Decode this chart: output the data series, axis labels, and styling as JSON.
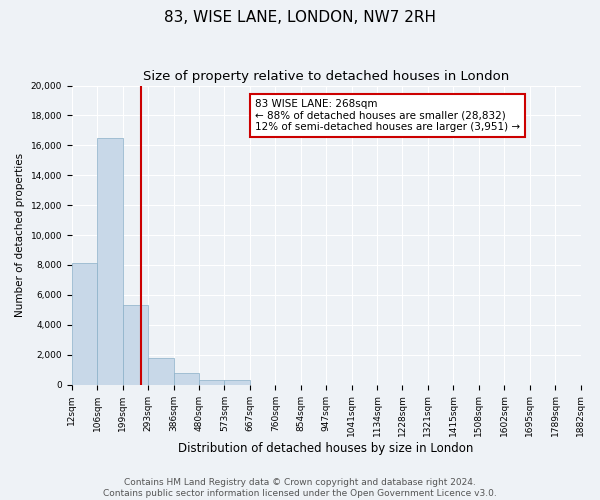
{
  "title": "83, WISE LANE, LONDON, NW7 2RH",
  "subtitle": "Size of property relative to detached houses in London",
  "xlabel": "Distribution of detached houses by size in London",
  "ylabel": "Number of detached properties",
  "bar_values": [
    8100,
    16500,
    5300,
    1750,
    800,
    300,
    300,
    0,
    0,
    0,
    0,
    0,
    0,
    0,
    0,
    0,
    0,
    0,
    0,
    0
  ],
  "bar_labels": [
    "12sqm",
    "106sqm",
    "199sqm",
    "293sqm",
    "386sqm",
    "480sqm",
    "573sqm",
    "667sqm",
    "760sqm",
    "854sqm",
    "947sqm",
    "1041sqm",
    "1134sqm",
    "1228sqm",
    "1321sqm",
    "1415sqm",
    "1508sqm",
    "1602sqm",
    "1695sqm",
    "1789sqm",
    "1882sqm"
  ],
  "bar_color": "#c8d8e8",
  "bar_edge_color": "#8ab0c8",
  "property_line_x": 2.73,
  "property_line_color": "#cc0000",
  "annotation_line1": "83 WISE LANE: 268sqm",
  "annotation_line2": "← 88% of detached houses are smaller (28,832)",
  "annotation_line3": "12% of semi-detached houses are larger (3,951) →",
  "annotation_box_color": "#ffffff",
  "annotation_box_edge_color": "#cc0000",
  "ylim": [
    0,
    20000
  ],
  "yticks": [
    0,
    2000,
    4000,
    6000,
    8000,
    10000,
    12000,
    14000,
    16000,
    18000,
    20000
  ],
  "bg_color": "#eef2f6",
  "plot_bg_color": "#eef2f6",
  "footer_text": "Contains HM Land Registry data © Crown copyright and database right 2024.\nContains public sector information licensed under the Open Government Licence v3.0.",
  "title_fontsize": 11,
  "subtitle_fontsize": 9.5,
  "xlabel_fontsize": 8.5,
  "ylabel_fontsize": 7.5,
  "tick_fontsize": 6.5,
  "footer_fontsize": 6.5,
  "annotation_fontsize": 7.5
}
